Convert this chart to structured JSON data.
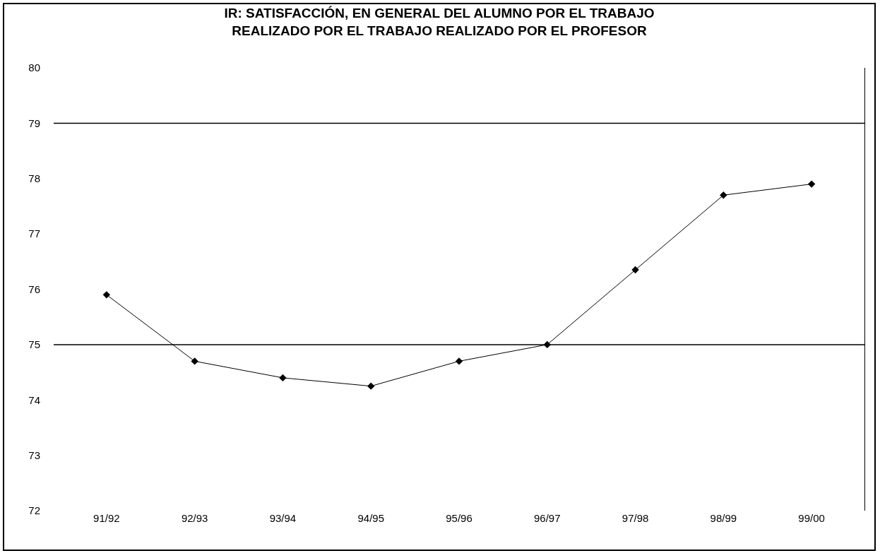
{
  "chart_data": {
    "type": "line",
    "title": "IR: SATISFACCIÓN, EN GENERAL DEL ALUMNO POR EL TRABAJO\nREALIZADO POR EL TRABAJO REALIZADO POR EL PROFESOR",
    "categories": [
      "91/92",
      "92/93",
      "93/94",
      "94/95",
      "95/96",
      "96/97",
      "97/98",
      "98/99",
      "99/00"
    ],
    "series": [
      {
        "color": "#000000",
        "values": [
          75.9,
          74.7,
          74.4,
          74.25,
          74.7,
          75.0,
          76.35,
          77.7,
          77.9
        ]
      }
    ],
    "ylim": [
      72,
      80
    ],
    "yticks": [
      72,
      73,
      74,
      75,
      76,
      77,
      78,
      79,
      80
    ],
    "ref_lines": [
      {
        "axis": "y",
        "value": 75,
        "color": "#000000"
      },
      {
        "axis": "y",
        "value": 79,
        "color": "#000000"
      }
    ],
    "grid": false,
    "marker": "diamond",
    "line_style": "solid"
  }
}
